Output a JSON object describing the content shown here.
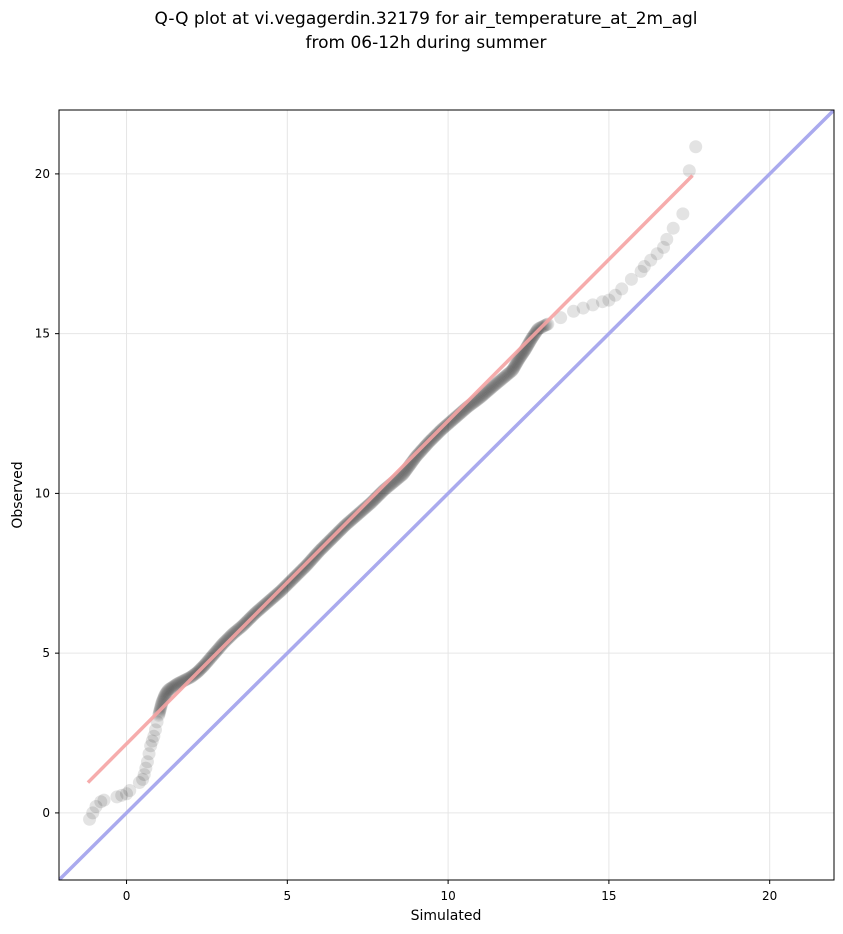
{
  "chart_data": {
    "type": "scatter",
    "title": [
      "Q-Q plot at vi.vegagerdin.32179 for air_temperature_at_2m_agl",
      "from 06-12h during summer"
    ],
    "xlabel": "Simulated",
    "ylabel": "Observed",
    "xlim": [
      -2.1,
      22.0
    ],
    "ylim": [
      -2.1,
      22.0
    ],
    "xticks": [
      0,
      5,
      10,
      15,
      20
    ],
    "yticks": [
      0,
      5,
      10,
      15,
      20
    ],
    "grid": true,
    "reference_line": {
      "name": "y = x",
      "color": "#aaaaee",
      "from": [
        -2.1,
        -2.1
      ],
      "to": [
        22.0,
        22.0
      ]
    },
    "fit_line": {
      "color": "#f5a3a3",
      "from": [
        -1.2,
        0.95
      ],
      "to": [
        17.6,
        19.95
      ]
    },
    "quantile_points": {
      "color": "#000000",
      "x": [
        -1.15,
        -1.05,
        -0.95,
        -0.8,
        -0.7,
        -0.3,
        -0.15,
        0.0,
        0.1,
        0.4,
        0.5,
        0.55,
        0.6,
        0.65,
        0.7,
        0.75,
        0.8,
        0.85,
        0.9,
        0.95,
        1.0,
        1.05,
        1.1,
        1.2,
        1.3,
        1.45,
        1.6,
        1.8,
        2.0,
        2.2,
        2.4,
        2.7,
        3.0,
        3.3,
        3.6,
        4.0,
        4.4,
        4.8,
        5.2,
        5.6,
        6.0,
        6.4,
        6.8,
        7.2,
        7.6,
        8.0,
        8.3,
        8.6,
        9.0,
        9.4,
        9.8,
        10.2,
        10.6,
        11.0,
        11.4,
        11.7,
        12.0,
        12.2,
        12.4,
        12.6,
        12.8,
        13.1,
        13.5,
        13.9,
        14.2,
        14.5,
        14.8,
        15.0,
        15.2,
        15.4,
        15.7,
        16.0,
        16.1,
        16.3,
        16.5,
        16.7,
        16.8,
        17.0,
        17.3,
        17.5
      ],
      "y": [
        -0.2,
        0.0,
        0.2,
        0.35,
        0.4,
        0.5,
        0.55,
        0.6,
        0.7,
        0.95,
        1.05,
        1.2,
        1.4,
        1.6,
        1.85,
        2.1,
        2.25,
        2.4,
        2.6,
        2.85,
        3.05,
        3.25,
        3.45,
        3.7,
        3.85,
        3.95,
        4.05,
        4.15,
        4.25,
        4.4,
        4.6,
        4.95,
        5.3,
        5.6,
        5.85,
        6.25,
        6.6,
        6.95,
        7.35,
        7.75,
        8.2,
        8.6,
        9.0,
        9.35,
        9.7,
        10.1,
        10.35,
        10.6,
        11.15,
        11.6,
        12.0,
        12.35,
        12.7,
        13.0,
        13.35,
        13.6,
        13.85,
        14.2,
        14.5,
        14.85,
        15.15,
        15.3,
        15.5,
        15.7,
        15.8,
        15.9,
        16.0,
        16.05,
        16.2,
        16.4,
        16.7,
        16.95,
        17.1,
        17.3,
        17.5,
        17.7,
        17.95,
        18.3,
        18.75,
        20.1
      ]
    },
    "outlier_point": {
      "x": 17.7,
      "y": 20.85
    }
  }
}
